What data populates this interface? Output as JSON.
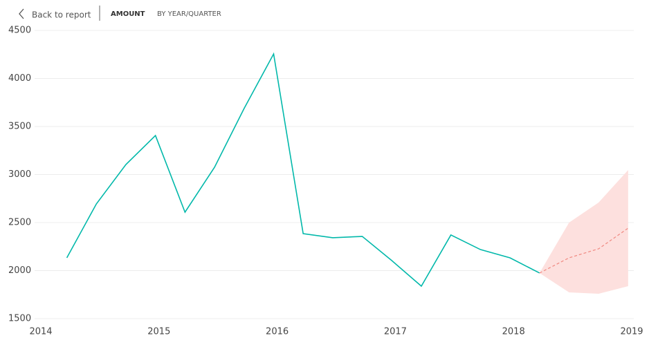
{
  "header": {
    "back": "Back to report",
    "tabs": [
      "AMOUNT",
      "BY YEAR/QUARTER"
    ]
  },
  "chart_data": {
    "type": "line",
    "x": [
      2014.22,
      2014.47,
      2014.72,
      2014.97,
      2015.22,
      2015.47,
      2015.72,
      2015.97,
      2016.22,
      2016.47,
      2016.72,
      2016.97,
      2017.22,
      2017.47,
      2017.72,
      2017.97,
      2018.22
    ],
    "series": [
      {
        "color": "#01b8aa",
        "values": [
          2133,
          2694,
          3104,
          3406,
          2608,
          3076,
          3687,
          4255,
          2385,
          2342,
          2356,
          2104,
          1838,
          2371,
          2219,
          2133,
          1975
        ]
      }
    ],
    "forecast": {
      "color": "#f0877f",
      "band_color": "#fde0de",
      "x": [
        2018.22,
        2018.47,
        2018.72,
        2018.97
      ],
      "values": [
        1975,
        2133,
        2227,
        2442
      ],
      "upper": [
        1975,
        2500,
        2709,
        3047
      ],
      "lower": [
        1975,
        1773,
        1759,
        1838
      ]
    },
    "xlim": [
      2014,
      2019
    ],
    "xticks": [
      2014,
      2015,
      2016,
      2017,
      2018,
      2019
    ],
    "ylim": [
      1500,
      4500
    ],
    "yticks": [
      1500,
      2000,
      2500,
      3000,
      3500,
      4000,
      4500
    ],
    "grid": true
  }
}
